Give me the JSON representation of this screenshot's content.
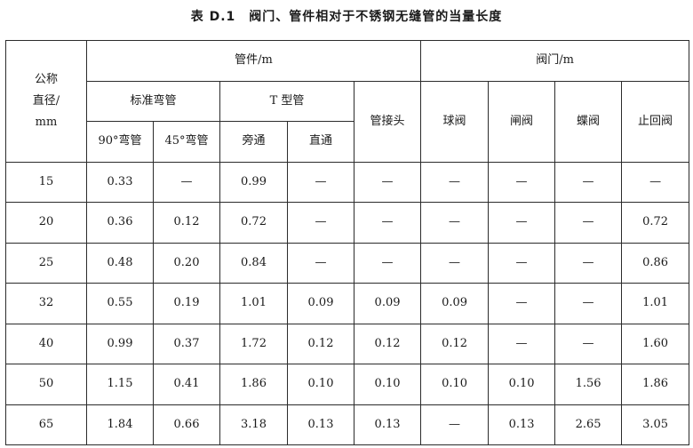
{
  "title": "表 D.1　阀门、管件相对于不锈钢无缝管的当量长度",
  "headers": {
    "nominal_diameter": [
      "公称",
      "直径/",
      "mm"
    ],
    "fittings": "管件/m",
    "valves": "阀门/m",
    "standard_elbow": "标准弯管",
    "tee": "T 型管",
    "coupling": "管接头",
    "elbow_90": "90°弯管",
    "elbow_45": "45°弯管",
    "tee_branch": "旁通",
    "tee_straight": "直通",
    "ball_valve": "球阀",
    "gate_valve": "闸阀",
    "butterfly_valve": "蝶阀",
    "check_valve": "止回阀"
  },
  "rows": [
    [
      "15",
      "0.33",
      "—",
      "0.99",
      "—",
      "—",
      "—",
      "—",
      "—",
      "—"
    ],
    [
      "20",
      "0.36",
      "0.12",
      "0.72",
      "—",
      "—",
      "—",
      "—",
      "—",
      "0.72"
    ],
    [
      "25",
      "0.48",
      "0.20",
      "0.84",
      "—",
      "—",
      "—",
      "—",
      "—",
      "0.86"
    ],
    [
      "32",
      "0.55",
      "0.19",
      "1.01",
      "0.09",
      "0.09",
      "0.09",
      "—",
      "—",
      "1.01"
    ],
    [
      "40",
      "0.99",
      "0.37",
      "1.72",
      "0.12",
      "0.12",
      "0.12",
      "—",
      "—",
      "1.60"
    ],
    [
      "50",
      "1.15",
      "0.41",
      "1.86",
      "0.10",
      "0.10",
      "0.10",
      "0.10",
      "1.56",
      "1.86"
    ],
    [
      "65",
      "1.84",
      "0.66",
      "3.18",
      "0.13",
      "0.13",
      "—",
      "0.13",
      "2.65",
      "3.05"
    ]
  ]
}
